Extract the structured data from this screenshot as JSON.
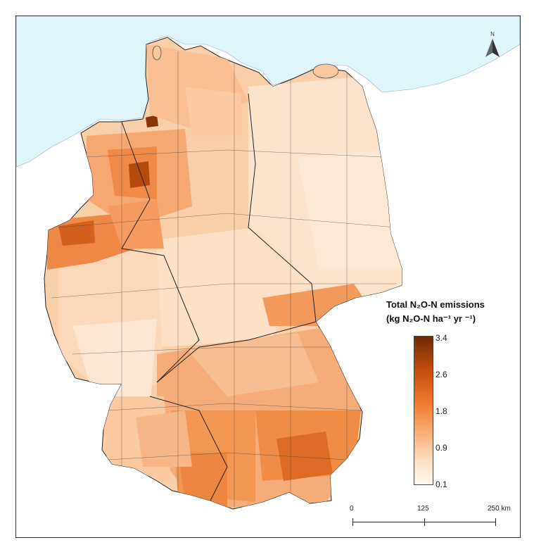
{
  "legend": {
    "title_line1": "Total   N₂O-N   emissions",
    "title_line2": "(kg N₂O-N ha⁻¹ yr ⁻¹)",
    "ticks": [
      "3.4",
      "2.6",
      "1.8",
      "0.9",
      "0.1"
    ],
    "colors": [
      "#6e2a07",
      "#c14c0c",
      "#f07a2e",
      "#f9b079",
      "#fde1c6",
      "#fff7f0"
    ]
  },
  "scale": {
    "labels": [
      "0",
      "125",
      "250 km"
    ]
  },
  "north_arrow": {
    "label": "N",
    "icon": "north-arrow-icon"
  },
  "map": {
    "sea_color": "#e0f5fb",
    "land_color": "#ffffff"
  }
}
